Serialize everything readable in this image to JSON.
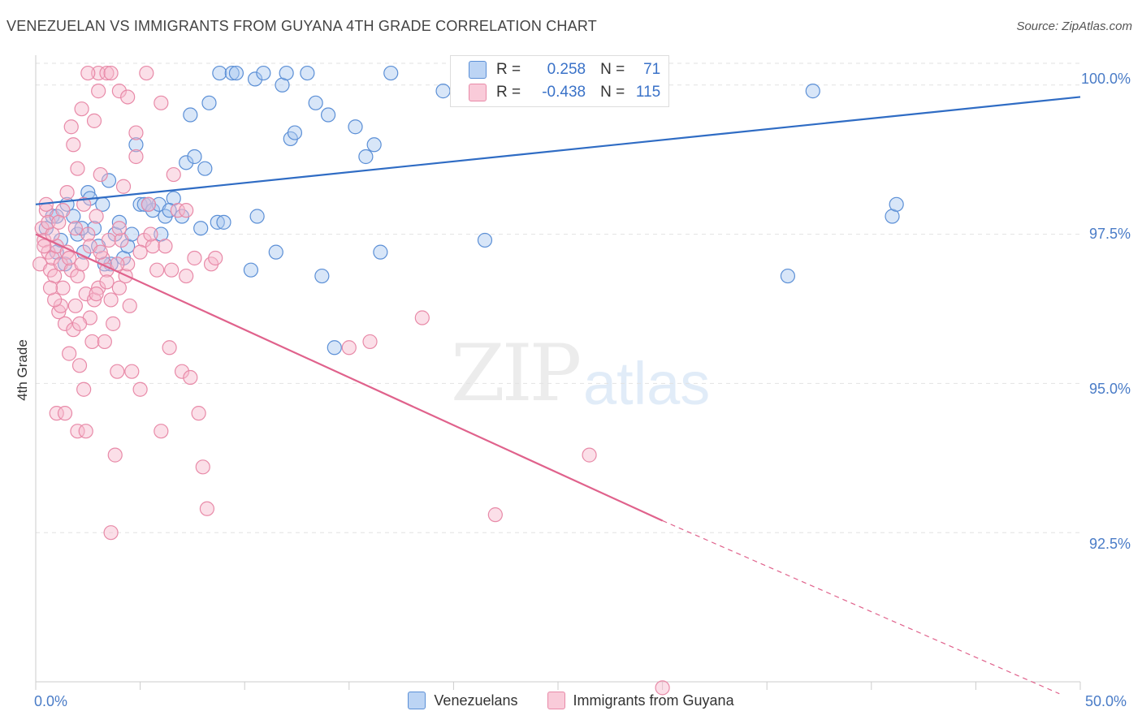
{
  "header": {
    "title": "VENEZUELAN VS IMMIGRANTS FROM GUYANA 4TH GRADE CORRELATION CHART",
    "source": "Source: ZipAtlas.com"
  },
  "watermark": {
    "zip": "ZIP",
    "atlas": "atlas"
  },
  "legend_top": {
    "rows": [
      {
        "r_label": "R =",
        "r_value": "0.258",
        "n_label": "N =",
        "n_value": "71"
      },
      {
        "r_label": "R =",
        "r_value": "-0.438",
        "n_label": "N =",
        "n_value": "115"
      }
    ]
  },
  "legend_bottom": {
    "items": [
      {
        "label": "Venezuelans"
      },
      {
        "label": "Immigrants from Guyana"
      }
    ]
  },
  "colors": {
    "blue_fill": "#a9c8f0",
    "blue_stroke": "#5b8fd6",
    "blue_line": "#2f6cc4",
    "pink_fill": "#f6b8cb",
    "pink_stroke": "#e88aa8",
    "pink_line": "#e0628c",
    "tick_text": "#4a7cc7"
  },
  "chart_data": {
    "type": "scatter",
    "title": "VENEZUELAN VS IMMIGRANTS FROM GUYANA 4TH GRADE CORRELATION CHART",
    "xlabel": "",
    "ylabel": "4th Grade",
    "xlim": [
      0,
      50
    ],
    "ylim": [
      90.0,
      100.5
    ],
    "x_tick_labels": [
      "0.0%",
      "50.0%"
    ],
    "y_ticks": [
      92.5,
      95.0,
      97.5,
      100.0
    ],
    "y_tick_labels": [
      "92.5%",
      "95.0%",
      "97.5%",
      "100.0%"
    ],
    "grid": true,
    "series": [
      {
        "name": "Venezuelans",
        "trend": {
          "x": [
            0,
            50
          ],
          "y": [
            98.0,
            99.8
          ]
        },
        "points": [
          [
            0.5,
            97.6
          ],
          [
            0.8,
            97.8
          ],
          [
            1.0,
            97.2
          ],
          [
            1.2,
            97.4
          ],
          [
            1.4,
            97.0
          ],
          [
            1.5,
            98.0
          ],
          [
            1.8,
            97.8
          ],
          [
            2.0,
            97.5
          ],
          [
            2.3,
            97.2
          ],
          [
            2.5,
            98.2
          ],
          [
            2.8,
            97.6
          ],
          [
            3.0,
            97.3
          ],
          [
            3.2,
            98.0
          ],
          [
            3.5,
            98.4
          ],
          [
            3.6,
            97.0
          ],
          [
            3.8,
            97.5
          ],
          [
            4.0,
            97.7
          ],
          [
            4.2,
            97.1
          ],
          [
            4.4,
            97.3
          ],
          [
            4.8,
            99.0
          ],
          [
            5.0,
            98.0
          ],
          [
            5.2,
            98.0
          ],
          [
            5.6,
            97.9
          ],
          [
            5.9,
            98.0
          ],
          [
            6.0,
            97.5
          ],
          [
            6.2,
            97.8
          ],
          [
            6.6,
            98.1
          ],
          [
            7.0,
            97.8
          ],
          [
            7.2,
            98.7
          ],
          [
            7.4,
            99.5
          ],
          [
            7.6,
            98.8
          ],
          [
            7.9,
            97.6
          ],
          [
            8.1,
            98.6
          ],
          [
            8.3,
            99.7
          ],
          [
            8.7,
            97.7
          ],
          [
            8.8,
            100.5
          ],
          [
            9.4,
            100.2
          ],
          [
            9.6,
            100.5
          ],
          [
            10.3,
            96.9
          ],
          [
            10.5,
            100.1
          ],
          [
            10.6,
            97.8
          ],
          [
            10.9,
            100.5
          ],
          [
            11.5,
            97.2
          ],
          [
            11.8,
            100.0
          ],
          [
            12.0,
            100.4
          ],
          [
            12.2,
            99.1
          ],
          [
            12.4,
            99.2
          ],
          [
            13.0,
            100.5
          ],
          [
            13.4,
            99.7
          ],
          [
            13.7,
            96.8
          ],
          [
            14.0,
            99.5
          ],
          [
            14.3,
            95.6
          ],
          [
            15.3,
            99.3
          ],
          [
            15.8,
            98.8
          ],
          [
            16.2,
            99.0
          ],
          [
            16.5,
            97.2
          ],
          [
            17.0,
            100.5
          ],
          [
            19.5,
            99.9
          ],
          [
            21.5,
            97.4
          ],
          [
            36.0,
            96.8
          ],
          [
            37.2,
            99.9
          ],
          [
            41.0,
            97.8
          ],
          [
            41.2,
            98.0
          ],
          [
            1.0,
            97.8
          ],
          [
            2.2,
            97.6
          ],
          [
            4.6,
            97.5
          ],
          [
            6.4,
            97.9
          ],
          [
            5.4,
            98.0
          ],
          [
            3.3,
            97.0
          ],
          [
            9.0,
            97.7
          ],
          [
            2.6,
            98.1
          ]
        ]
      },
      {
        "name": "Immigrants from Guyana",
        "trend": {
          "x": [
            0,
            30
          ],
          "y": [
            97.5,
            92.7
          ]
        },
        "trend_dashed": {
          "x": [
            30,
            49
          ],
          "y": [
            92.7,
            89.8
          ]
        },
        "points": [
          [
            0.2,
            97.0
          ],
          [
            0.3,
            97.6
          ],
          [
            0.4,
            97.4
          ],
          [
            0.5,
            97.9
          ],
          [
            0.6,
            97.2
          ],
          [
            0.7,
            96.9
          ],
          [
            0.8,
            97.1
          ],
          [
            0.9,
            96.8
          ],
          [
            1.0,
            97.3
          ],
          [
            1.1,
            96.2
          ],
          [
            1.2,
            97.0
          ],
          [
            1.3,
            96.6
          ],
          [
            1.4,
            96.0
          ],
          [
            1.5,
            97.2
          ],
          [
            1.6,
            95.5
          ],
          [
            1.7,
            96.9
          ],
          [
            1.8,
            95.9
          ],
          [
            1.9,
            96.3
          ],
          [
            2.0,
            96.8
          ],
          [
            2.1,
            95.3
          ],
          [
            2.2,
            97.0
          ],
          [
            2.3,
            94.9
          ],
          [
            2.4,
            96.5
          ],
          [
            2.5,
            97.5
          ],
          [
            2.6,
            96.1
          ],
          [
            2.7,
            95.7
          ],
          [
            2.8,
            96.4
          ],
          [
            2.9,
            97.8
          ],
          [
            3.0,
            96.6
          ],
          [
            3.1,
            98.5
          ],
          [
            3.2,
            97.1
          ],
          [
            3.3,
            95.7
          ],
          [
            3.4,
            96.9
          ],
          [
            3.5,
            97.4
          ],
          [
            3.6,
            96.4
          ],
          [
            3.7,
            96.0
          ],
          [
            3.8,
            93.8
          ],
          [
            3.9,
            95.2
          ],
          [
            4.0,
            96.6
          ],
          [
            4.1,
            97.4
          ],
          [
            4.2,
            98.3
          ],
          [
            4.3,
            96.8
          ],
          [
            4.4,
            97.0
          ],
          [
            4.6,
            95.2
          ],
          [
            4.8,
            98.8
          ],
          [
            5.0,
            94.9
          ],
          [
            5.2,
            97.4
          ],
          [
            5.4,
            98.0
          ],
          [
            5.6,
            97.3
          ],
          [
            5.8,
            96.9
          ],
          [
            6.0,
            94.2
          ],
          [
            6.2,
            97.3
          ],
          [
            6.4,
            95.6
          ],
          [
            6.6,
            98.5
          ],
          [
            6.8,
            97.9
          ],
          [
            7.0,
            95.2
          ],
          [
            7.2,
            97.9
          ],
          [
            7.4,
            95.1
          ],
          [
            7.6,
            97.1
          ],
          [
            7.8,
            94.5
          ],
          [
            8.0,
            93.6
          ],
          [
            8.2,
            92.9
          ],
          [
            8.4,
            97.0
          ],
          [
            8.6,
            97.1
          ],
          [
            1.0,
            94.5
          ],
          [
            1.4,
            94.5
          ],
          [
            2.0,
            94.2
          ],
          [
            2.4,
            94.2
          ],
          [
            3.6,
            92.5
          ],
          [
            0.5,
            98.0
          ],
          [
            0.8,
            97.5
          ],
          [
            1.2,
            96.3
          ],
          [
            1.5,
            98.2
          ],
          [
            1.7,
            99.3
          ],
          [
            2.0,
            98.6
          ],
          [
            2.8,
            99.4
          ],
          [
            3.0,
            100.5
          ],
          [
            3.4,
            100.5
          ],
          [
            3.6,
            100.4
          ],
          [
            4.0,
            99.9
          ],
          [
            4.4,
            99.8
          ],
          [
            4.8,
            99.2
          ],
          [
            5.3,
            100.5
          ],
          [
            6.0,
            99.7
          ],
          [
            3.0,
            99.9
          ],
          [
            2.5,
            100.2
          ],
          [
            1.8,
            99.0
          ],
          [
            2.2,
            99.6
          ],
          [
            15.0,
            95.6
          ],
          [
            16.0,
            95.7
          ],
          [
            18.5,
            96.1
          ],
          [
            22.0,
            92.8
          ],
          [
            26.5,
            93.8
          ],
          [
            30.0,
            89.9
          ],
          [
            4.0,
            97.6
          ],
          [
            0.6,
            97.7
          ],
          [
            1.6,
            97.1
          ],
          [
            2.6,
            97.3
          ],
          [
            3.4,
            96.7
          ],
          [
            0.9,
            96.4
          ],
          [
            1.9,
            97.6
          ],
          [
            2.9,
            96.5
          ],
          [
            5.0,
            97.2
          ],
          [
            6.5,
            96.9
          ],
          [
            7.2,
            96.8
          ],
          [
            0.4,
            97.3
          ],
          [
            1.3,
            97.9
          ],
          [
            2.1,
            96.0
          ],
          [
            3.1,
            97.2
          ],
          [
            4.5,
            96.3
          ],
          [
            5.5,
            97.5
          ],
          [
            0.7,
            96.6
          ],
          [
            1.1,
            97.7
          ],
          [
            2.3,
            98.0
          ],
          [
            3.9,
            97.0
          ]
        ]
      }
    ]
  }
}
